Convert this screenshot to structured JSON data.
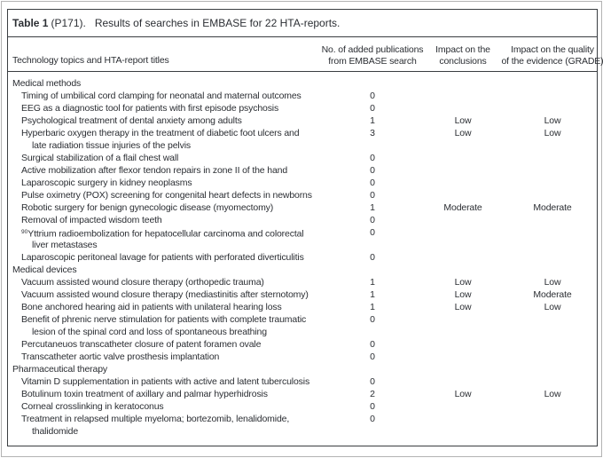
{
  "page": {
    "title_bold": "Table 1",
    "title_ref": "(P171).",
    "title_caption": "Results of searches in EMBASE for 22 HTA-reports."
  },
  "columns": {
    "topics": "Technology topics and HTA-report titles",
    "publications_line1": "No. of added publications",
    "publications_line2": "from EMBASE search",
    "conclusions_line1": "Impact on the",
    "conclusions_line2": "conclusions",
    "quality_line1": "Impact on the quality",
    "quality_line2": "of the evidence (GRADE)"
  },
  "rows": [
    {
      "kind": "section",
      "title": "Medical methods"
    },
    {
      "kind": "item",
      "title": "Timing of umbilical cord clamping for neonatal and maternal outcomes",
      "added": "0",
      "conclusions": "",
      "grade": ""
    },
    {
      "kind": "item",
      "title": "EEG as a diagnostic tool for patients with first episode psychosis",
      "added": "0",
      "conclusions": "",
      "grade": ""
    },
    {
      "kind": "item",
      "title": "Psychological treatment of dental anxiety among adults",
      "added": "1",
      "conclusions": "Low",
      "grade": "Low"
    },
    {
      "kind": "item",
      "title": "Hyperbaric oxygen therapy in the treatment of diabetic foot ulcers and",
      "title2": "late radiation tissue injuries of the pelvis",
      "added": "3",
      "conclusions": "Low",
      "grade": "Low"
    },
    {
      "kind": "item",
      "title": "Surgical stabilization of a flail chest wall",
      "added": "0",
      "conclusions": "",
      "grade": ""
    },
    {
      "kind": "item",
      "title": "Active mobilization after flexor tendon repairs in zone II of the hand",
      "added": "0",
      "conclusions": "",
      "grade": ""
    },
    {
      "kind": "item",
      "title": "Laparoscopic surgery in kidney neoplasms",
      "added": "0",
      "conclusions": "",
      "grade": ""
    },
    {
      "kind": "item",
      "title": "Pulse oximetry (POX) screening for congenital heart defects in newborns",
      "added": "0",
      "conclusions": "",
      "grade": ""
    },
    {
      "kind": "item",
      "title": "Robotic surgery for benign gynecologic disease (myomectomy)",
      "added": "1",
      "conclusions": "Moderate",
      "grade": "Moderate"
    },
    {
      "kind": "item",
      "title": "Removal of impacted wisdom teeth",
      "added": "0",
      "conclusions": "",
      "grade": ""
    },
    {
      "kind": "item",
      "sup": "90",
      "title": "Yttrium radioembolization for hepatocellular carcinoma and colorectal",
      "title2": "liver metastases",
      "added": "0",
      "conclusions": "",
      "grade": ""
    },
    {
      "kind": "item",
      "title": "Laparoscopic peritoneal lavage for patients with perforated diverticulitis",
      "added": "0",
      "conclusions": "",
      "grade": ""
    },
    {
      "kind": "section",
      "title": "Medical devices"
    },
    {
      "kind": "item",
      "title": "Vacuum assisted wound closure therapy (orthopedic trauma)",
      "added": "1",
      "conclusions": "Low",
      "grade": "Low"
    },
    {
      "kind": "item",
      "title": "Vacuum assisted wound closure therapy (mediastinitis after sternotomy)",
      "added": "1",
      "conclusions": "Low",
      "grade": "Moderate"
    },
    {
      "kind": "item",
      "title": "Bone anchored hearing aid in patients with unilateral hearing loss",
      "added": "1",
      "conclusions": "Low",
      "grade": "Low"
    },
    {
      "kind": "item",
      "title": "Benefit of phrenic nerve stimulation for patients with complete traumatic",
      "title2": "lesion of the spinal cord and loss of spontaneous breathing",
      "added": "0",
      "conclusions": "",
      "grade": ""
    },
    {
      "kind": "item",
      "title": "Percutaneuos transcatheter closure of patent foramen ovale",
      "added": "0",
      "conclusions": "",
      "grade": ""
    },
    {
      "kind": "item",
      "title": "Transcatheter aortic valve prosthesis implantation",
      "added": "0",
      "conclusions": "",
      "grade": ""
    },
    {
      "kind": "section",
      "title": "Pharmaceutical therapy"
    },
    {
      "kind": "item",
      "title": "Vitamin D supplementation in patients with active and latent tuberculosis",
      "added": "0",
      "conclusions": "",
      "grade": ""
    },
    {
      "kind": "item",
      "title": "Botulinum toxin treatment of axillary and palmar hyperhidrosis",
      "added": "2",
      "conclusions": "Low",
      "grade": "Low"
    },
    {
      "kind": "item",
      "title": "Corneal crosslinking in keratoconus",
      "added": "0",
      "conclusions": "",
      "grade": ""
    },
    {
      "kind": "item",
      "title": "Treatment in relapsed multiple myeloma; bortezomib, lenalidomide,",
      "title2": "thalidomide",
      "added": "0",
      "conclusions": "",
      "grade": ""
    }
  ]
}
